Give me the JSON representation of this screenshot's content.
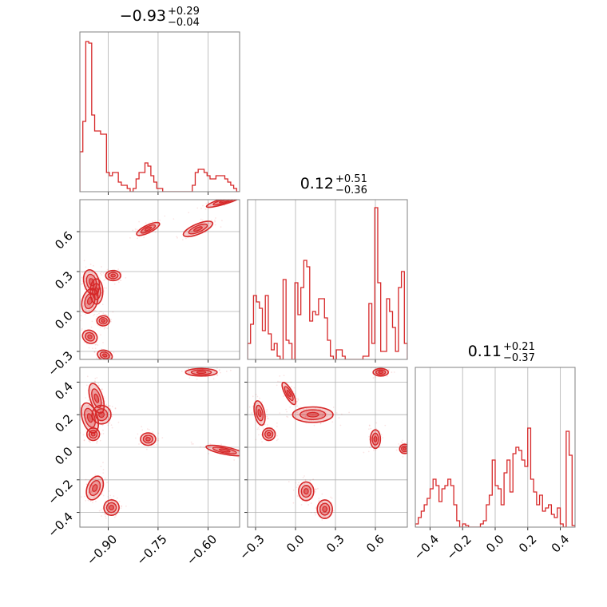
{
  "chart_data": {
    "type": "corner",
    "color": "#d62728",
    "panel_titles": [
      {
        "value": "−0.93",
        "plus": "+0.29",
        "minus": "−0.04"
      },
      {
        "value": "0.12",
        "plus": "+0.51",
        "minus": "−0.36"
      },
      {
        "value": "0.11",
        "plus": "+0.21",
        "minus": "−0.37"
      }
    ],
    "axes": [
      {
        "range": [
          -0.985,
          -0.505
        ],
        "ticks": [
          -0.9,
          -0.75,
          -0.6
        ],
        "tick_labels": [
          "−0.90",
          "−0.75",
          "−0.60"
        ]
      },
      {
        "range": [
          -0.36,
          0.84
        ],
        "ticks": [
          -0.3,
          0.0,
          0.3,
          0.6
        ],
        "tick_labels": [
          "−0.3",
          "0.0",
          "0.3",
          "0.6"
        ]
      },
      {
        "range": [
          -0.49,
          0.49
        ],
        "ticks": [
          -0.4,
          -0.2,
          0.0,
          0.2,
          0.4
        ],
        "tick_labels": [
          "−0.4",
          "−0.2",
          "0.0",
          "0.2",
          "0.4"
        ]
      }
    ],
    "histograms": [
      {
        "bin_range": [
          -0.985,
          -0.505
        ],
        "counts": [
          0.25,
          0.44,
          0.94,
          0.93,
          0.48,
          0.38,
          0.38,
          0.36,
          0.36,
          0.12,
          0.1,
          0.12,
          0.12,
          0.06,
          0.04,
          0.04,
          0.02,
          0.0,
          0.02,
          0.08,
          0.12,
          0.12,
          0.18,
          0.16,
          0.1,
          0.06,
          0.02,
          0.02,
          0.0,
          0.0,
          0.0,
          0.0,
          0.0,
          0.0,
          0.0,
          0.0,
          0.0,
          0.0,
          0.04,
          0.12,
          0.14,
          0.14,
          0.12,
          0.1,
          0.08,
          0.08,
          0.1,
          0.1,
          0.1,
          0.08,
          0.06,
          0.04,
          0.02,
          0.0
        ]
      },
      {
        "bin_range": [
          -0.36,
          0.84
        ],
        "counts": [
          0.1,
          0.22,
          0.4,
          0.36,
          0.32,
          0.18,
          0.4,
          0.16,
          0.06,
          0.1,
          0.02,
          0.0,
          0.5,
          0.12,
          0.1,
          0.0,
          0.48,
          0.28,
          0.45,
          0.62,
          0.58,
          0.24,
          0.3,
          0.28,
          0.38,
          0.38,
          0.26,
          0.12,
          0.02,
          0.0,
          0.06,
          0.06,
          0.02,
          0.0,
          0.0,
          0.0,
          0.0,
          0.0,
          0.0,
          0.02,
          0.02,
          0.35,
          0.1,
          0.95,
          0.48,
          0.05,
          0.05,
          0.38,
          0.3,
          0.2,
          0.05,
          0.45,
          0.55,
          0.1
        ]
      },
      {
        "bin_range": [
          -0.49,
          0.49
        ],
        "counts": [
          0.02,
          0.06,
          0.1,
          0.14,
          0.18,
          0.24,
          0.3,
          0.26,
          0.16,
          0.24,
          0.26,
          0.3,
          0.26,
          0.14,
          0.04,
          0.0,
          0.02,
          0.01,
          0.0,
          0.0,
          0.0,
          0.0,
          0.02,
          0.04,
          0.14,
          0.2,
          0.42,
          0.26,
          0.24,
          0.14,
          0.34,
          0.42,
          0.22,
          0.46,
          0.5,
          0.48,
          0.42,
          0.38,
          0.62,
          0.3,
          0.22,
          0.14,
          0.2,
          0.1,
          0.12,
          0.14,
          0.08,
          0.06,
          0.12,
          0.02,
          0.0,
          0.6,
          0.45,
          0.01
        ]
      }
    ],
    "scatter_blobs": [
      {
        "pair": [
          0,
          1
        ],
        "blobs": [
          [
            -0.95,
            0.22,
            0.012,
            0.05,
            0.25
          ],
          [
            -0.955,
            0.08,
            0.012,
            0.05,
            -0.3
          ],
          [
            -0.935,
            0.15,
            0.01,
            0.05,
            0.0
          ],
          [
            -0.955,
            -0.19,
            0.012,
            0.025,
            -0.5
          ],
          [
            -0.915,
            -0.07,
            0.01,
            0.02,
            0.0
          ],
          [
            -0.91,
            -0.33,
            0.012,
            0.02,
            -0.3
          ],
          [
            -0.885,
            0.27,
            0.012,
            0.02,
            0.0
          ],
          [
            -0.78,
            0.62,
            0.02,
            0.015,
            0.45
          ],
          [
            -0.63,
            0.62,
            0.025,
            0.02,
            0.4
          ],
          [
            -0.55,
            0.83,
            0.03,
            0.012,
            0.3
          ]
        ]
      },
      {
        "pair": [
          0,
          2
        ],
        "blobs": [
          [
            -0.955,
            0.18,
            0.012,
            0.05,
            0.3
          ],
          [
            -0.935,
            0.3,
            0.01,
            0.05,
            0.3
          ],
          [
            -0.945,
            0.08,
            0.01,
            0.02,
            0.0
          ],
          [
            -0.92,
            0.2,
            0.015,
            0.03,
            0.0
          ],
          [
            -0.94,
            -0.25,
            0.012,
            0.04,
            -0.4
          ],
          [
            -0.89,
            -0.37,
            0.012,
            0.025,
            -0.3
          ],
          [
            -0.78,
            0.05,
            0.012,
            0.02,
            0.0
          ],
          [
            -0.62,
            0.46,
            0.025,
            0.012,
            0.0
          ],
          [
            -0.55,
            -0.02,
            0.03,
            0.012,
            -0.2
          ]
        ]
      },
      {
        "pair": [
          1,
          2
        ],
        "blobs": [
          [
            -0.27,
            0.21,
            0.02,
            0.04,
            0.2
          ],
          [
            -0.2,
            0.08,
            0.025,
            0.02,
            0.0
          ],
          [
            -0.05,
            0.33,
            0.015,
            0.04,
            0.5
          ],
          [
            0.13,
            0.2,
            0.08,
            0.025,
            0.0
          ],
          [
            0.08,
            -0.27,
            0.03,
            0.03,
            0.0
          ],
          [
            0.22,
            -0.38,
            0.03,
            0.03,
            0.0
          ],
          [
            0.6,
            0.05,
            0.02,
            0.03,
            0.0
          ],
          [
            0.82,
            -0.01,
            0.02,
            0.015,
            0.0
          ],
          [
            0.64,
            0.46,
            0.03,
            0.012,
            0.0
          ]
        ]
      }
    ],
    "grid": true,
    "legend": "none"
  }
}
